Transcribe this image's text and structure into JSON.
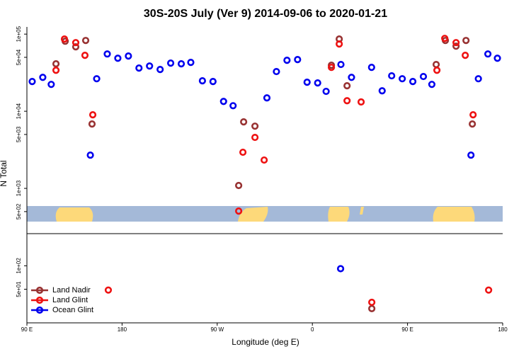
{
  "chart_data": [
    {
      "type": "scatter",
      "title": "30S-20S July (Ver 9)   2014-09-06 to 2020-01-21",
      "ylabel": "N Total",
      "log_y": true,
      "xlim": [
        90,
        540
      ],
      "ylim": [
        259,
        124000
      ],
      "yticks": [
        {
          "value": 100000,
          "label": "1e+05"
        },
        {
          "value": 50000,
          "label": "5e+04"
        },
        {
          "value": 10000,
          "label": "1e+04"
        },
        {
          "value": 5000,
          "label": "5e+03"
        },
        {
          "value": 1000,
          "label": "1e+03"
        },
        {
          "value": 500,
          "label": "5e+02"
        }
      ],
      "series": [
        {
          "name": "Land Nadir",
          "color": "#983232",
          "x": [
            117.5,
            126.2,
            136.2,
            145.6,
            151.6,
            290.3,
            295,
            305.7,
            378,
            385.4,
            392.8,
            477.1,
            485.8,
            495.9,
            505.3,
            511.3
          ],
          "values": [
            41200,
            80900,
            68400,
            82700,
            6840,
            1090,
            7280,
            6410,
            39500,
            86300,
            21400,
            40400,
            82700,
            69800,
            82700,
            6840
          ]
        },
        {
          "name": "Land Glint",
          "color": "#ee1111",
          "x": [
            117.5,
            125.5,
            136.2,
            144.9,
            152.3,
            290.3,
            294.3,
            305.7,
            314.4,
            378,
            385.4,
            392.8,
            406.1,
            477.8,
            485.2,
            495.9,
            504.6,
            512
          ],
          "values": [
            34000,
            86300,
            77600,
            53100,
            9000,
            508,
            2940,
            4580,
            2330,
            37100,
            74500,
            13700,
            13200,
            34000,
            88100,
            77600,
            53100,
            9000
          ]
        },
        {
          "name": "Ocean Glint",
          "color": "#0000ee",
          "x": [
            95,
            105,
            113,
            150,
            156,
            166,
            176,
            186,
            196,
            206,
            216,
            226,
            236,
            245,
            256,
            266,
            276,
            285,
            317,
            326,
            336,
            346,
            355,
            365,
            373,
            387,
            397,
            416,
            426,
            435,
            445,
            455,
            465,
            473,
            510,
            517,
            526,
            535
          ],
          "values": [
            24300,
            27500,
            22300,
            2700,
            26400,
            55300,
            48700,
            52000,
            36300,
            38600,
            34800,
            42100,
            41200,
            43000,
            24800,
            24300,
            13400,
            11800,
            14900,
            32700,
            45800,
            46800,
            23800,
            23300,
            18100,
            40400,
            27500,
            37100,
            18400,
            28800,
            26400,
            24300,
            28200,
            22300,
            2700,
            26400,
            55300,
            48700
          ]
        }
      ]
    },
    {
      "type": "scatter",
      "xlabel": "Longitude (deg E)",
      "log_y": true,
      "legend": "lower left",
      "xlim": [
        90,
        540
      ],
      "ylim": [
        18.5,
        259
      ],
      "xticks": [
        {
          "value": 90,
          "label": "90 E"
        },
        180,
        {
          "value": 270,
          "label": "90 W"
        },
        {
          "value": 360,
          "label": "0"
        },
        {
          "value": 450,
          "label": "90 E"
        },
        {
          "value": 540,
          "label": "180"
        }
      ],
      "yticks": [
        {
          "value": 100,
          "label": "1e+02"
        },
        {
          "value": 50,
          "label": "5e+01"
        }
      ],
      "series": [
        {
          "x": [
            416.2
          ],
          "values": [
            28.2
          ]
        },
        {
          "x": [
            167,
            416.2,
            526.7
          ],
          "values": [
            48.8,
            34,
            48.8
          ]
        },
        {
          "x": [
            386.7
          ],
          "values": [
            91.9
          ]
        }
      ]
    }
  ]
}
